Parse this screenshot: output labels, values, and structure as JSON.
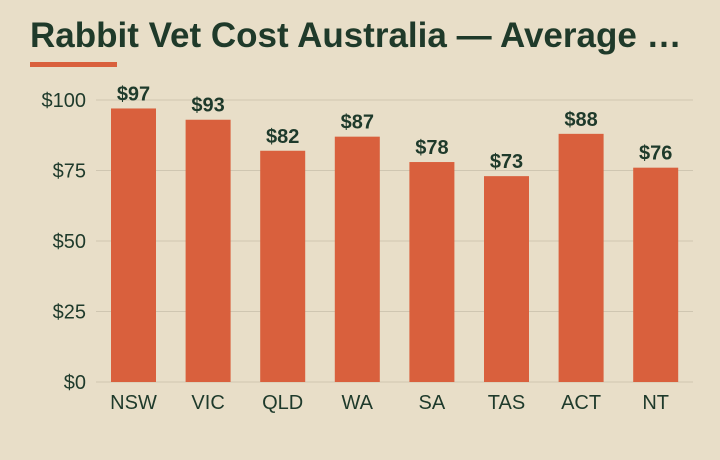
{
  "header": {
    "title": "Rabbit Vet Cost Australia — Average …"
  },
  "colors": {
    "background": "#e8dec8",
    "bar": "#d9603d",
    "accent": "#d9603d",
    "text": "#1e3a2b",
    "grid": "#cfc6b1"
  },
  "chart_data": {
    "type": "bar",
    "title": "Rabbit Vet Cost Australia — Average …",
    "xlabel": "",
    "ylabel": "",
    "categories": [
      "NSW",
      "VIC",
      "QLD",
      "WA",
      "SA",
      "TAS",
      "ACT",
      "NT"
    ],
    "values": [
      97,
      93,
      82,
      87,
      78,
      73,
      88,
      76
    ],
    "value_labels": [
      "$97",
      "$93",
      "$82",
      "$87",
      "$78",
      "$73",
      "$88",
      "$76"
    ],
    "ylim": [
      0,
      100
    ],
    "y_ticks": [
      0,
      25,
      50,
      75,
      100
    ],
    "y_tick_labels": [
      "$0",
      "$25",
      "$50",
      "$75",
      "$100"
    ],
    "grid": true,
    "legend": "none"
  }
}
